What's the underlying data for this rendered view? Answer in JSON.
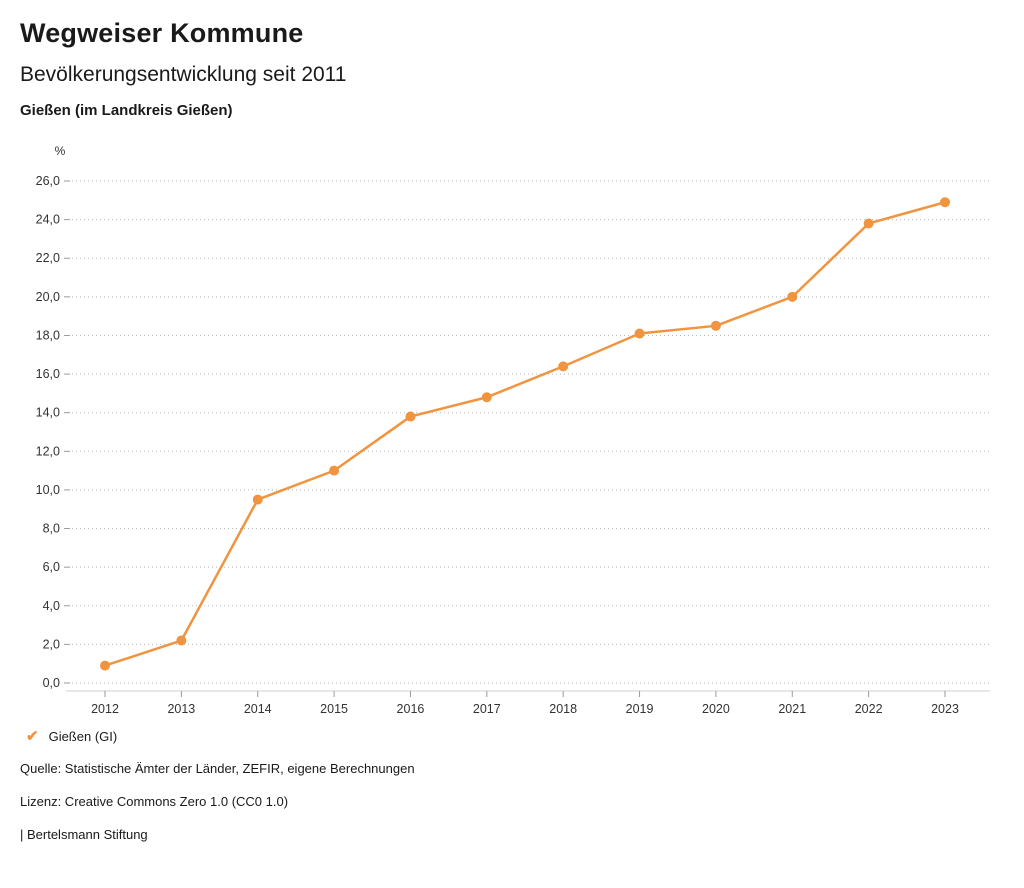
{
  "header": {
    "title": "Wegweiser Kommune",
    "subtitle": "Bevölkerungsentwicklung seit 2011",
    "location": "Gießen (im Landkreis Gießen)"
  },
  "chart_data": {
    "type": "line",
    "title": "Bevölkerungsentwicklung seit 2011",
    "unit_label": "%",
    "categories": [
      "2012",
      "2013",
      "2014",
      "2015",
      "2016",
      "2017",
      "2018",
      "2019",
      "2020",
      "2021",
      "2022",
      "2023"
    ],
    "series": [
      {
        "name": "Gießen (GI)",
        "values": [
          0.9,
          2.2,
          9.5,
          11.0,
          13.8,
          14.8,
          16.4,
          18.1,
          18.5,
          20.0,
          23.8,
          24.9
        ]
      }
    ],
    "ylim": [
      0,
      26
    ],
    "ytick_step": 2,
    "decimal_separator": ",",
    "line_color": "#f0943f",
    "grid": true,
    "grid_style": "dotted",
    "legend_position": "bottom"
  },
  "legend": {
    "items": [
      {
        "label": "Gießen (GI)",
        "color": "#f0943f",
        "marker": "check"
      }
    ]
  },
  "footer": {
    "source": "Quelle: Statistische Ämter der Länder, ZEFIR, eigene Berechnungen",
    "license": "Lizenz: Creative Commons Zero 1.0 (CC0 1.0)",
    "brand": "| Bertelsmann Stiftung"
  }
}
